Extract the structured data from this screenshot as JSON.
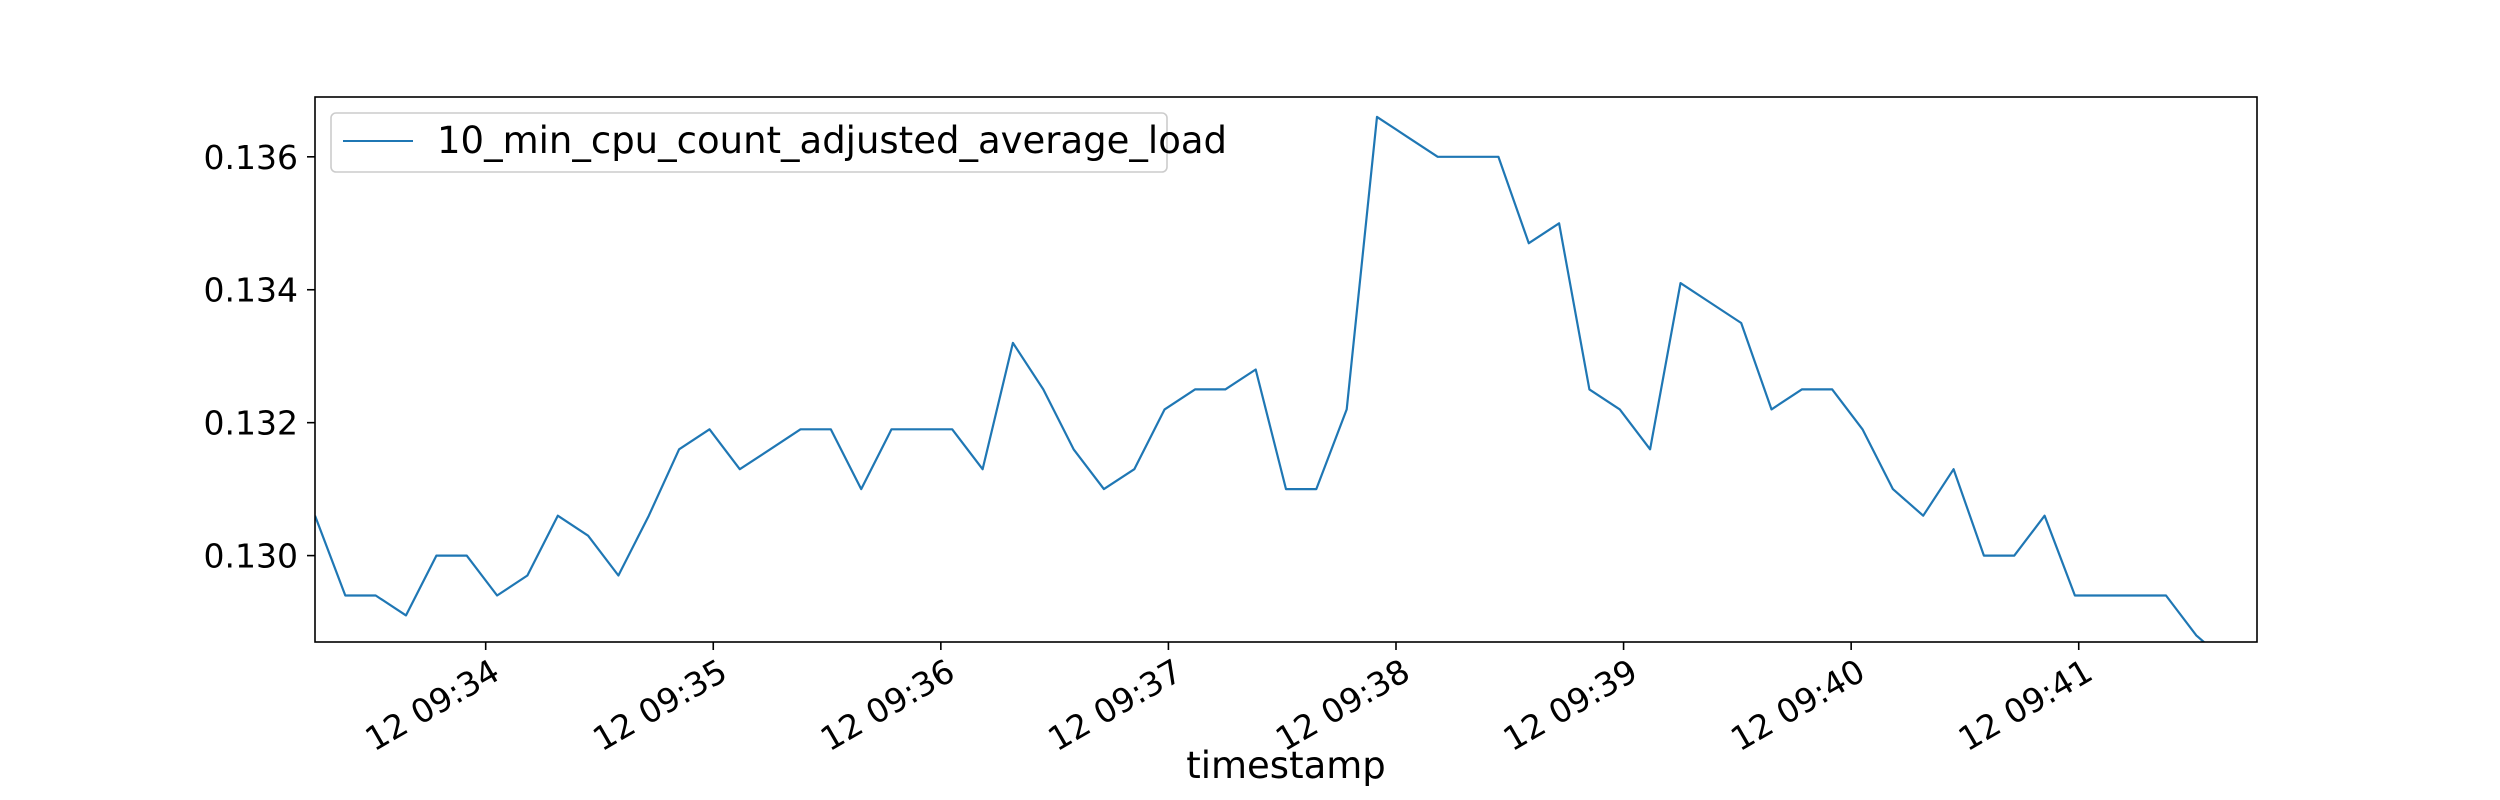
{
  "chart_data": {
    "type": "line",
    "title": "",
    "xlabel": "timestamp",
    "ylabel": "",
    "x_unit": "time",
    "x_start": "12 09:33:15",
    "x_step_seconds": 8,
    "xlim": [
      "12 09:33:15",
      "12 09:41:47"
    ],
    "ylim": [
      0.1287,
      0.1369
    ],
    "x_ticks": [
      "12 09:34",
      "12 09:35",
      "12 09:36",
      "12 09:37",
      "12 09:38",
      "12 09:39",
      "12 09:40",
      "12 09:41"
    ],
    "y_ticks": [
      "0.130",
      "0.132",
      "0.134",
      "0.136"
    ],
    "grid": false,
    "legend_position": "upper left",
    "series": [
      {
        "name": "10_min_cpu_count_adjusted_average_load",
        "color": "#1f77b4",
        "values": [
          0.1306,
          0.1294,
          0.1294,
          0.1291,
          0.13,
          0.13,
          0.1294,
          0.1297,
          0.1306,
          0.1303,
          0.1297,
          0.1306,
          0.1316,
          0.1319,
          0.1313,
          0.1316,
          0.1319,
          0.1319,
          0.131,
          0.1319,
          0.1319,
          0.1319,
          0.1313,
          0.1332,
          0.1325,
          0.1316,
          0.131,
          0.1313,
          0.1322,
          0.1325,
          0.1325,
          0.1328,
          0.131,
          0.131,
          0.1322,
          0.1366,
          0.1363,
          0.136,
          0.136,
          0.136,
          0.1347,
          0.135,
          0.1325,
          0.1322,
          0.1316,
          0.1341,
          0.1338,
          0.1335,
          0.1322,
          0.1325,
          0.1325,
          0.1319,
          0.131,
          0.1306,
          0.1313,
          0.13,
          0.13,
          0.1306,
          0.1294,
          0.1294,
          0.1294,
          0.1294,
          0.1288,
          0.1284
        ]
      }
    ]
  }
}
